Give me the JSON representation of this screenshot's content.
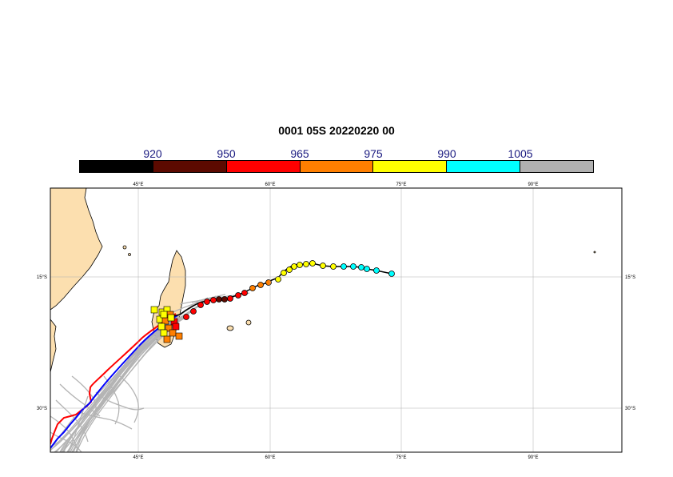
{
  "title": "0001 05S 20220220 00",
  "colorbar": {
    "labels": [
      "920",
      "950",
      "965",
      "975",
      "990",
      "1005"
    ],
    "colors": [
      "#000000",
      "#5c0a00",
      "#ff0000",
      "#ff7f00",
      "#ffff00",
      "#00ffff",
      "#b0b0b0"
    ]
  },
  "axes": {
    "lon_ticks": [
      "45°E",
      "60°E",
      "75°E",
      "90°E"
    ],
    "lat_ticks": [
      "15°S",
      "30°S"
    ]
  },
  "map_colors": {
    "land": "#fcdfaf",
    "ensemble": "#b4b4b4",
    "deterministic": "#ff0000",
    "control": "#0000ff",
    "observed_track": "#000000"
  }
}
